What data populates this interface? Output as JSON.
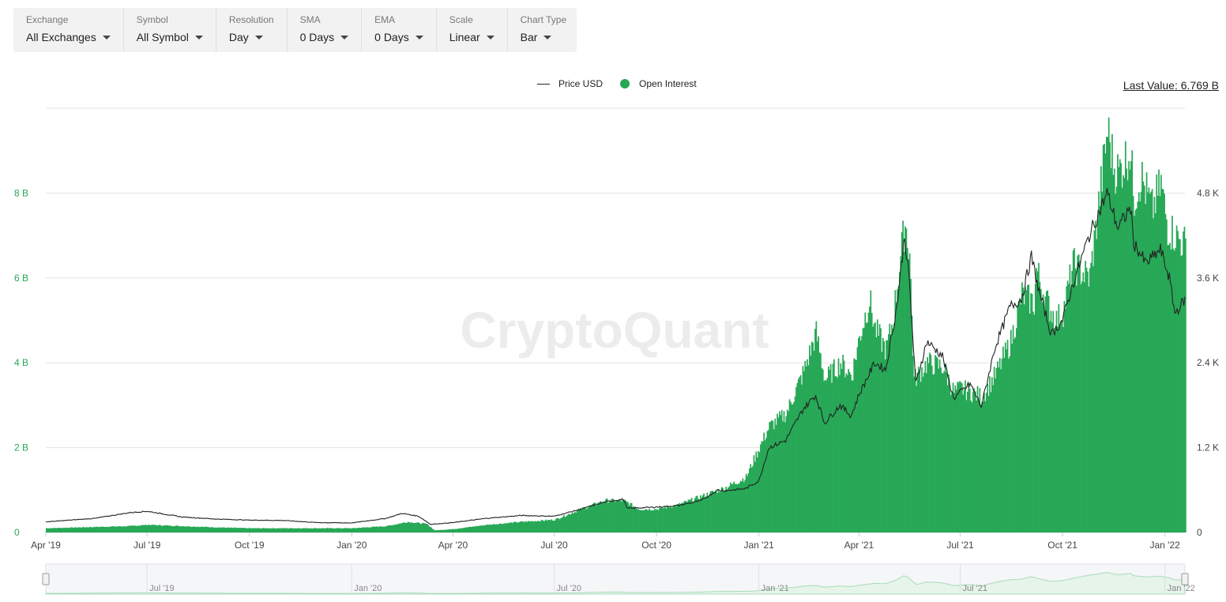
{
  "toolbar": {
    "items": [
      {
        "label": "Exchange",
        "value": "All Exchanges"
      },
      {
        "label": "Symbol",
        "value": "All Symbol"
      },
      {
        "label": "Resolution",
        "value": "Day"
      },
      {
        "label": "SMA",
        "value": "0 Days"
      },
      {
        "label": "EMA",
        "value": "0 Days"
      },
      {
        "label": "Scale",
        "value": "Linear"
      },
      {
        "label": "Chart Type",
        "value": "Bar"
      }
    ]
  },
  "legend": {
    "price": "Price USD",
    "oi": "Open Interest"
  },
  "last_value": "Last Value: 6.769 B",
  "watermark": "CryptoQuant",
  "colors": {
    "open_interest": "#27a856",
    "price": "#222222",
    "navigator": "#a8dcb8"
  },
  "chart_data": {
    "type": "area",
    "title": "",
    "x_range": [
      "2019-04-01",
      "2022-01-19"
    ],
    "x_ticks": [
      "Apr '19",
      "Jul '19",
      "Oct '19",
      "Jan '20",
      "Apr '20",
      "Jul '20",
      "Oct '20",
      "Jan '21",
      "Apr '21",
      "Jul '21",
      "Oct '21",
      "Jan '22"
    ],
    "navigator_ticks": [
      "Jul '19",
      "Jan '20",
      "Jul '20",
      "Jan '21",
      "Jul '21",
      "Jan '22"
    ],
    "y_left": {
      "ticks": [
        "0",
        "2 B",
        "4 B",
        "6 B",
        "8 B"
      ],
      "range": [
        0,
        10
      ],
      "unit": "B"
    },
    "y_right": {
      "ticks": [
        "0",
        "1.2 K",
        "2.4 K",
        "3.6 K",
        "4.8 K"
      ],
      "range": [
        0,
        6000
      ],
      "unit": "USD"
    },
    "grid": true,
    "legend_position": "top-center",
    "series": [
      {
        "name": "Open Interest",
        "type": "bar",
        "axis": "left",
        "points": [
          [
            "2019-04-01",
            0.1
          ],
          [
            "2019-05-15",
            0.13
          ],
          [
            "2019-06-15",
            0.15
          ],
          [
            "2019-07-01",
            0.18
          ],
          [
            "2019-08-01",
            0.15
          ],
          [
            "2019-09-01",
            0.12
          ],
          [
            "2019-10-01",
            0.1
          ],
          [
            "2019-11-01",
            0.1
          ],
          [
            "2019-12-01",
            0.1
          ],
          [
            "2020-01-01",
            0.1
          ],
          [
            "2020-02-01",
            0.15
          ],
          [
            "2020-02-20",
            0.25
          ],
          [
            "2020-03-08",
            0.2
          ],
          [
            "2020-03-15",
            0.05
          ],
          [
            "2020-04-01",
            0.08
          ],
          [
            "2020-05-01",
            0.18
          ],
          [
            "2020-06-01",
            0.25
          ],
          [
            "2020-07-01",
            0.3
          ],
          [
            "2020-07-25",
            0.55
          ],
          [
            "2020-08-15",
            0.75
          ],
          [
            "2020-09-01",
            0.75
          ],
          [
            "2020-09-15",
            0.55
          ],
          [
            "2020-10-01",
            0.55
          ],
          [
            "2020-10-20",
            0.65
          ],
          [
            "2020-11-10",
            0.85
          ],
          [
            "2020-12-01",
            1.05
          ],
          [
            "2020-12-20",
            1.3
          ],
          [
            "2021-01-01",
            2.0
          ],
          [
            "2021-01-10",
            2.5
          ],
          [
            "2021-01-25",
            2.8
          ],
          [
            "2021-02-10",
            3.8
          ],
          [
            "2021-02-21",
            4.7
          ],
          [
            "2021-03-01",
            3.6
          ],
          [
            "2021-03-15",
            4.0
          ],
          [
            "2021-03-25",
            3.7
          ],
          [
            "2021-04-01",
            4.6
          ],
          [
            "2021-04-10",
            5.5
          ],
          [
            "2021-04-15",
            4.8
          ],
          [
            "2021-04-25",
            4.3
          ],
          [
            "2021-05-01",
            5.0
          ],
          [
            "2021-05-08",
            6.5
          ],
          [
            "2021-05-12",
            7.3
          ],
          [
            "2021-05-16",
            6.6
          ],
          [
            "2021-05-20",
            3.6
          ],
          [
            "2021-06-01",
            4.0
          ],
          [
            "2021-06-15",
            3.9
          ],
          [
            "2021-06-25",
            3.3
          ],
          [
            "2021-07-01",
            3.4
          ],
          [
            "2021-07-20",
            3.2
          ],
          [
            "2021-08-01",
            3.7
          ],
          [
            "2021-08-15",
            4.5
          ],
          [
            "2021-08-25",
            5.6
          ],
          [
            "2021-09-05",
            5.4
          ],
          [
            "2021-09-07",
            6.2
          ],
          [
            "2021-09-15",
            5.5
          ],
          [
            "2021-09-25",
            5.0
          ],
          [
            "2021-10-01",
            5.2
          ],
          [
            "2021-10-10",
            6.3
          ],
          [
            "2021-10-25",
            6.0
          ],
          [
            "2021-11-01",
            7.5
          ],
          [
            "2021-11-10",
            9.5
          ],
          [
            "2021-11-16",
            8.6
          ],
          [
            "2021-11-20",
            8.5
          ],
          [
            "2021-11-30",
            9.0
          ],
          [
            "2021-12-04",
            7.9
          ],
          [
            "2021-12-10",
            8.4
          ],
          [
            "2021-12-20",
            7.6
          ],
          [
            "2021-12-28",
            8.2
          ],
          [
            "2022-01-03",
            7.2
          ],
          [
            "2022-01-10",
            7.0
          ],
          [
            "2022-01-19",
            6.77
          ]
        ]
      },
      {
        "name": "Price USD",
        "type": "line",
        "axis": "right",
        "points": [
          [
            "2019-04-01",
            150
          ],
          [
            "2019-05-15",
            200
          ],
          [
            "2019-06-15",
            280
          ],
          [
            "2019-07-01",
            300
          ],
          [
            "2019-08-01",
            220
          ],
          [
            "2019-09-01",
            190
          ],
          [
            "2019-10-01",
            175
          ],
          [
            "2019-11-01",
            170
          ],
          [
            "2019-12-01",
            140
          ],
          [
            "2020-01-01",
            135
          ],
          [
            "2020-02-01",
            200
          ],
          [
            "2020-02-15",
            270
          ],
          [
            "2020-03-01",
            230
          ],
          [
            "2020-03-12",
            115
          ],
          [
            "2020-04-01",
            140
          ],
          [
            "2020-05-01",
            200
          ],
          [
            "2020-06-01",
            240
          ],
          [
            "2020-07-01",
            230
          ],
          [
            "2020-07-25",
            330
          ],
          [
            "2020-08-15",
            430
          ],
          [
            "2020-09-01",
            470
          ],
          [
            "2020-09-05",
            340
          ],
          [
            "2020-10-01",
            360
          ],
          [
            "2020-10-20",
            380
          ],
          [
            "2020-11-10",
            450
          ],
          [
            "2020-11-25",
            600
          ],
          [
            "2020-12-01",
            590
          ],
          [
            "2020-12-20",
            620
          ],
          [
            "2021-01-01",
            730
          ],
          [
            "2021-01-10",
            1200
          ],
          [
            "2021-01-25",
            1300
          ],
          [
            "2021-02-10",
            1750
          ],
          [
            "2021-02-21",
            1940
          ],
          [
            "2021-03-01",
            1550
          ],
          [
            "2021-03-15",
            1800
          ],
          [
            "2021-03-25",
            1650
          ],
          [
            "2021-04-01",
            1950
          ],
          [
            "2021-04-15",
            2400
          ],
          [
            "2021-04-25",
            2300
          ],
          [
            "2021-05-05",
            3200
          ],
          [
            "2021-05-12",
            4200
          ],
          [
            "2021-05-16",
            3600
          ],
          [
            "2021-05-22",
            2100
          ],
          [
            "2021-06-01",
            2700
          ],
          [
            "2021-06-15",
            2500
          ],
          [
            "2021-06-25",
            1900
          ],
          [
            "2021-07-10",
            2100
          ],
          [
            "2021-07-20",
            1780
          ],
          [
            "2021-08-01",
            2600
          ],
          [
            "2021-08-15",
            3200
          ],
          [
            "2021-08-25",
            3300
          ],
          [
            "2021-09-03",
            3900
          ],
          [
            "2021-09-10",
            3400
          ],
          [
            "2021-09-21",
            2800
          ],
          [
            "2021-10-01",
            3000
          ],
          [
            "2021-10-10",
            3500
          ],
          [
            "2021-10-25",
            4200
          ],
          [
            "2021-11-10",
            4800
          ],
          [
            "2021-11-20",
            4300
          ],
          [
            "2021-12-01",
            4600
          ],
          [
            "2021-12-04",
            4100
          ],
          [
            "2021-12-15",
            3800
          ],
          [
            "2021-12-28",
            4000
          ],
          [
            "2022-01-05",
            3600
          ],
          [
            "2022-01-10",
            3100
          ],
          [
            "2022-01-19",
            3300
          ]
        ]
      }
    ]
  }
}
